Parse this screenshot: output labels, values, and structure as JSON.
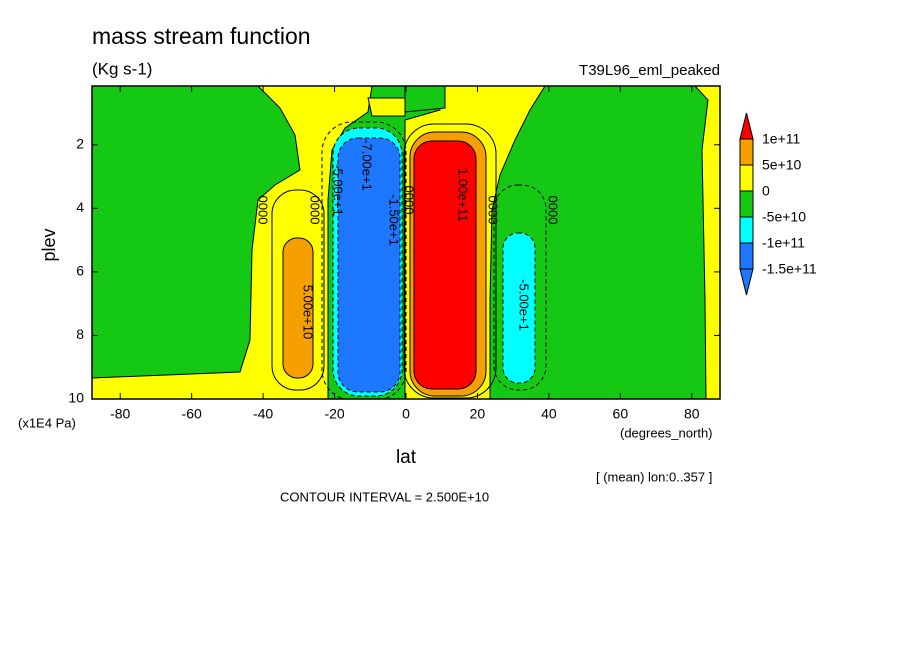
{
  "chart_data": {
    "type": "contour",
    "title": "mass stream function",
    "subtitle": "(Kg s-1)",
    "run_label": "T39L96_eml_peaked",
    "xlabel": "lat",
    "ylabel": "plev",
    "x_unit": "(degrees_north)",
    "y_unit": "(x1E4 Pa)",
    "note": "[ (mean) lon:0..357 ]",
    "footer": "CONTOUR INTERVAL = 2.500E+10",
    "xlim": [
      -87.9,
      87.9
    ],
    "xticks": [
      -80,
      -60,
      -40,
      -20,
      0,
      20,
      40,
      60,
      80
    ],
    "ylim": [
      10,
      0.15
    ],
    "yticks": [
      2,
      4,
      6,
      8,
      10
    ],
    "levels": [
      {
        "value": 100000000000,
        "label": "1e+11"
      },
      {
        "value": 50000000000,
        "label": "5e+10"
      },
      0,
      {
        "value": -50000000000,
        "label": "-5e+10"
      },
      {
        "value": -100000000000,
        "label": "-1e+11"
      },
      {
        "value": -150000000000,
        "label": "-1.5e+11"
      }
    ],
    "colors": [
      "#ff0000",
      "#f5a000",
      "#ffff00",
      "#14c814",
      "#00ffff",
      "#1e78ff",
      "#1e78ff"
    ],
    "contour_labels": [
      "0000",
      "0000",
      "5.00e+10",
      "-5.00e+1",
      "-7.00e+1",
      "-1.50e+1",
      "0000",
      "1.00e+11",
      "0000",
      "-5.00e+1",
      "0000"
    ]
  }
}
